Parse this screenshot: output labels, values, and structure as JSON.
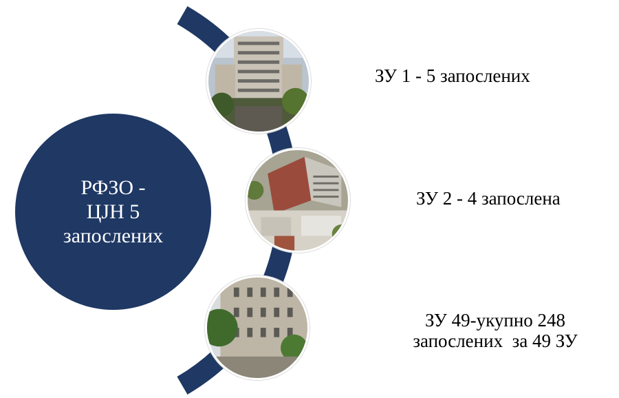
{
  "central": {
    "line1": "РФЗО -",
    "line2": "ЦЈН 5",
    "line3": "запослених"
  },
  "items": [
    {
      "text": "ЗУ 1 - 5 запослених",
      "photo": "hospital-building-photo"
    },
    {
      "text": "ЗУ 2 - 4 запослена",
      "photo": "aerial-hospital-complex-photo"
    },
    {
      "line1": "ЗУ 49-укупно 248",
      "line2": "запослених  за 49 ЗУ",
      "photo": "historic-building-photo"
    }
  ],
  "colors": {
    "navy": "#1f3864",
    "text": "#000000",
    "background": "#ffffff"
  }
}
